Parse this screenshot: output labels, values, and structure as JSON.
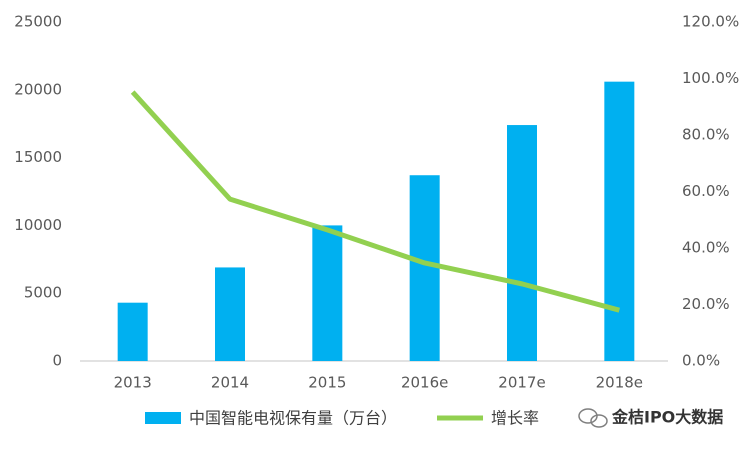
{
  "chart_data": {
    "type": "bar+line",
    "categories": [
      "2013",
      "2014",
      "2015",
      "2016e",
      "2017e",
      "2018e"
    ],
    "series": [
      {
        "name": "中国智能电视保有量（万台）",
        "type": "bar",
        "color": "#00b0f0",
        "values": [
          4300,
          6900,
          10000,
          13700,
          17400,
          20600
        ]
      },
      {
        "name": "增长率",
        "type": "line",
        "axis": "y2",
        "color": "#92d050",
        "values": [
          95.2,
          57.3,
          46.4,
          34.7,
          27.3,
          18
        ]
      }
    ],
    "ylim": [
      0,
      25000
    ],
    "yticks": [
      0,
      5000,
      10000,
      15000,
      20000,
      25000
    ],
    "y2lim": [
      0,
      120
    ],
    "y2ticks": [
      {
        "value": 0,
        "label": "0.0%"
      },
      {
        "value": 20,
        "label": "20.0%"
      },
      {
        "value": 40,
        "label": "40.0%"
      },
      {
        "value": 60,
        "label": "60.0%"
      },
      {
        "value": 80,
        "label": "80.0%"
      },
      {
        "value": 100,
        "label": "100.0%"
      },
      {
        "value": 120,
        "label": "120.0%"
      }
    ],
    "grid": false,
    "legend": "bottom",
    "watermark": "金桔IPO大数据"
  }
}
